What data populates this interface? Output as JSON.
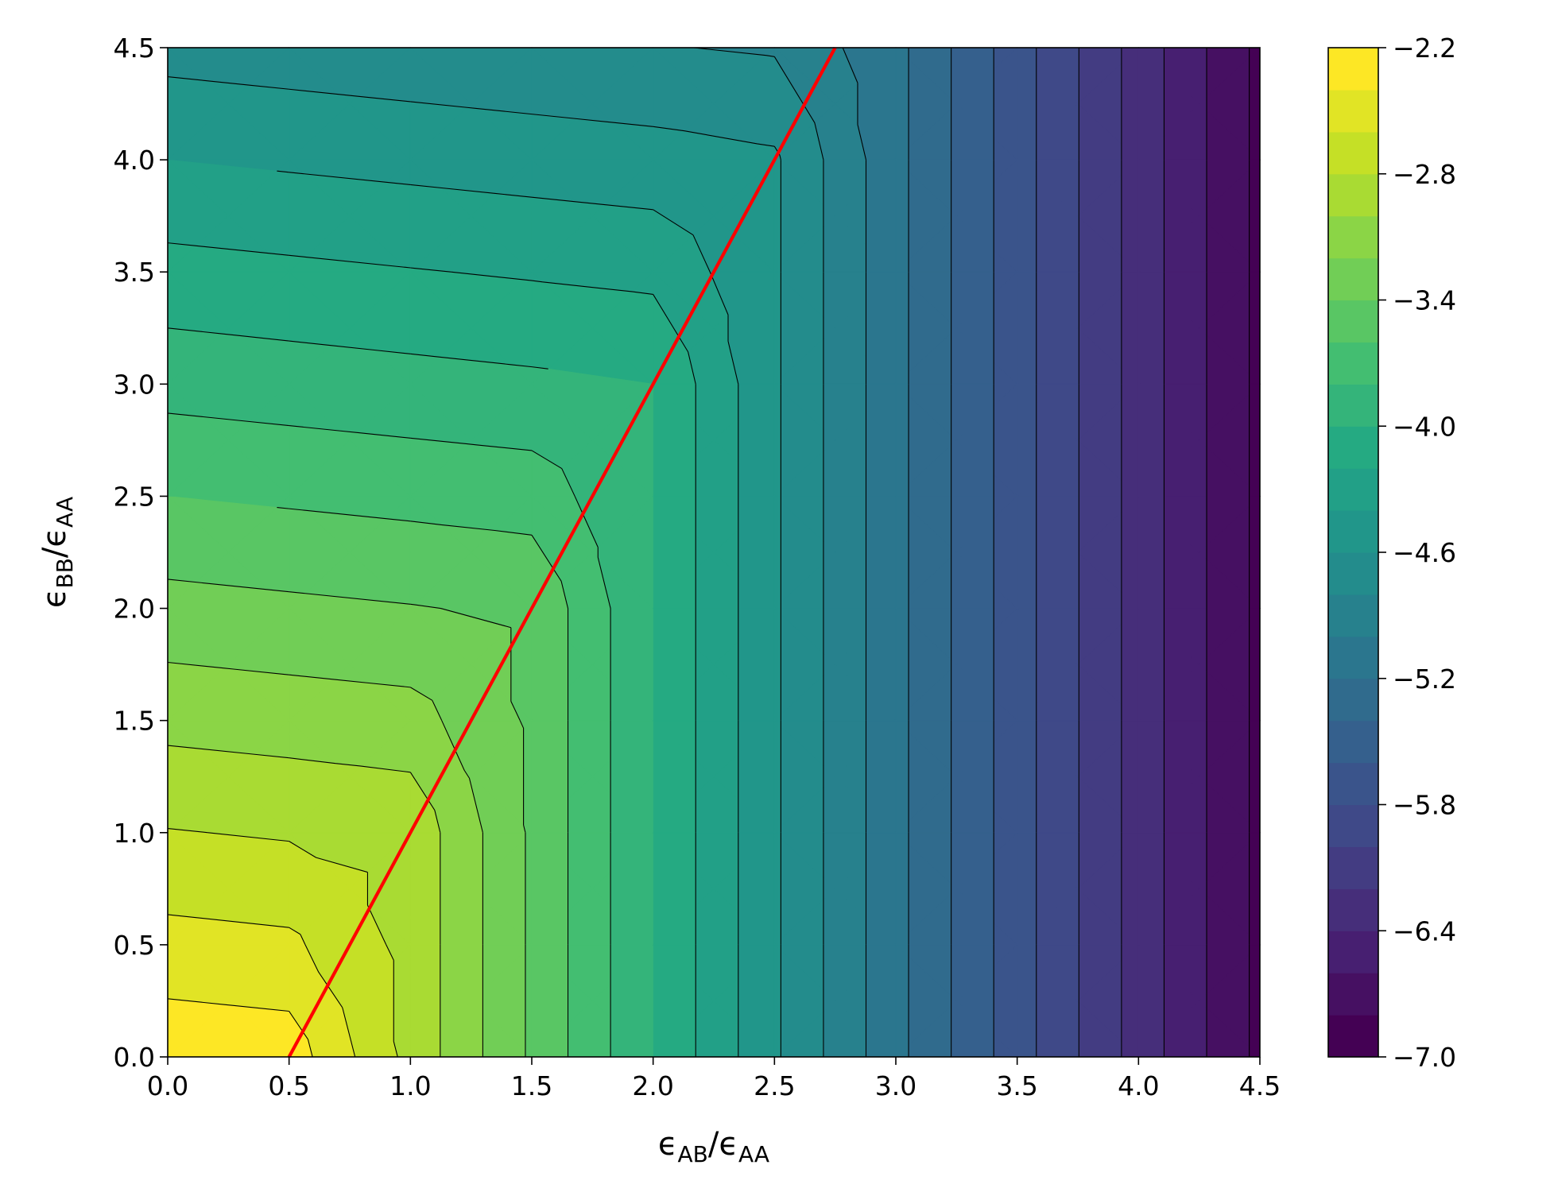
{
  "chart_data": {
    "type": "contourf",
    "xlabel": [
      "ϵ",
      "AB",
      "/ϵ",
      "AA"
    ],
    "ylabel": [
      "ϵ",
      "BB",
      "/ϵ",
      "AA"
    ],
    "colormap": "viridis",
    "x": [
      0,
      0.5,
      1,
      1.5,
      2,
      2.5,
      3,
      3.5,
      4,
      4.5
    ],
    "y": [
      0,
      0.5,
      1,
      1.5,
      2,
      2.5,
      3,
      3.5,
      4,
      4.5
    ],
    "z": [
      [
        -2.26,
        -2.29,
        -2.86,
        -3.43,
        -4.0,
        -4.57,
        -5.14,
        -5.71,
        -6.28,
        -6.85
      ],
      [
        -2.53,
        -2.56,
        -2.86,
        -3.43,
        -4.0,
        -4.57,
        -5.14,
        -5.71,
        -6.28,
        -6.85
      ],
      [
        -2.79,
        -2.82,
        -2.86,
        -3.43,
        -4.0,
        -4.57,
        -5.14,
        -5.71,
        -6.28,
        -6.85
      ],
      [
        -3.06,
        -3.09,
        -3.12,
        -3.43,
        -4.0,
        -4.57,
        -5.14,
        -5.71,
        -6.28,
        -6.85
      ],
      [
        -3.33,
        -3.36,
        -3.39,
        -3.43,
        -4.0,
        -4.57,
        -5.14,
        -5.71,
        -6.28,
        -6.85
      ],
      [
        -3.6,
        -3.63,
        -3.66,
        -3.69,
        -4.0,
        -4.57,
        -5.14,
        -5.71,
        -6.28,
        -6.85
      ],
      [
        -3.87,
        -3.9,
        -3.93,
        -3.96,
        -4.0,
        -4.57,
        -5.14,
        -5.71,
        -6.28,
        -6.85
      ],
      [
        -4.13,
        -4.16,
        -4.19,
        -4.22,
        -4.25,
        -4.57,
        -5.14,
        -5.71,
        -6.28,
        -6.85
      ],
      [
        -4.4,
        -4.43,
        -4.46,
        -4.49,
        -4.52,
        -4.57,
        -5.14,
        -5.71,
        -6.28,
        -6.85
      ],
      [
        -4.67,
        -4.7,
        -4.73,
        -4.76,
        -4.79,
        -4.82,
        -5.14,
        -5.71,
        -6.28,
        -6.85
      ]
    ],
    "levels": [
      -7.0,
      -6.8,
      -6.6,
      -6.4,
      -6.2,
      -6.0,
      -5.8,
      -5.6,
      -5.4,
      -5.2,
      -5.0,
      -4.8,
      -4.6,
      -4.4,
      -4.2,
      -4.0,
      -3.8,
      -3.6,
      -3.4,
      -3.2,
      -3.0,
      -2.8,
      -2.6,
      -2.4,
      -2.2
    ],
    "contour_color": "#000000",
    "lines": [
      {
        "x": [
          0.5,
          2.75
        ],
        "y": [
          0,
          4.5
        ],
        "color": "#ff0000"
      }
    ],
    "xlim": [
      0,
      4.5
    ],
    "ylim": [
      0,
      4.5
    ],
    "xticks": [
      {
        "value": 0,
        "label": "0.0"
      },
      0.5,
      {
        "value": 1,
        "label": "1.0"
      },
      1.5,
      {
        "value": 2,
        "label": "2.0"
      },
      2.5,
      {
        "value": 3,
        "label": "3.0"
      },
      3.5,
      {
        "value": 4,
        "label": "4.0"
      },
      4.5
    ],
    "yticks": [
      {
        "value": 0,
        "label": "0.0"
      },
      0.5,
      {
        "value": 1,
        "label": "1.0"
      },
      1.5,
      {
        "value": 2,
        "label": "2.0"
      },
      2.5,
      {
        "value": 3,
        "label": "3.0"
      },
      3.5,
      {
        "value": 4,
        "label": "4.0"
      },
      4.5
    ],
    "clim": [
      -7.0,
      -2.2
    ],
    "cticks": [
      {
        "value": -2.2,
        "label": "−2.2"
      },
      {
        "value": -2.8,
        "label": "−2.8"
      },
      {
        "value": -3.4,
        "label": "−3.4"
      },
      {
        "value": -4.0,
        "label": "−4.0"
      },
      {
        "value": -4.6,
        "label": "−4.6"
      },
      {
        "value": -5.2,
        "label": "−5.2"
      },
      {
        "value": -5.8,
        "label": "−5.8"
      },
      {
        "value": -6.4,
        "label": "−6.4"
      },
      {
        "value": -7.0,
        "label": "−7.0"
      }
    ]
  }
}
